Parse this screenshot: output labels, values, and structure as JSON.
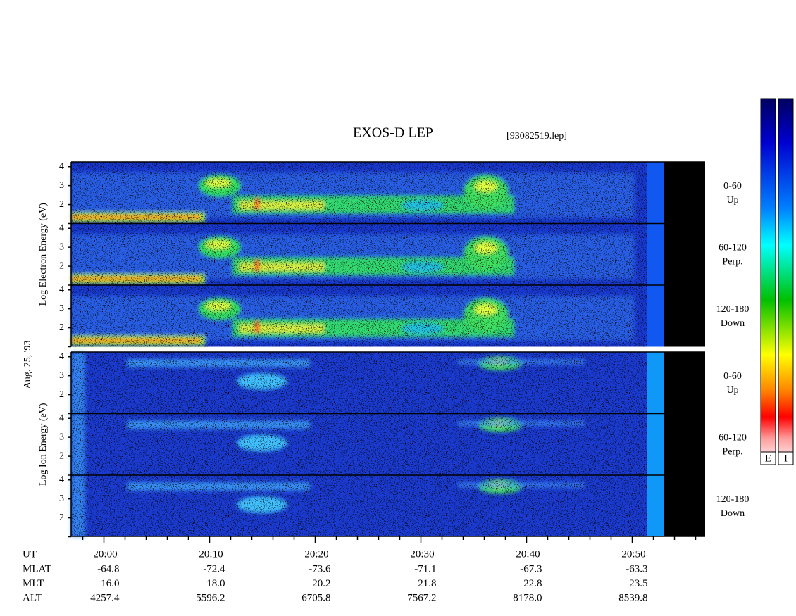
{
  "chart_data": {
    "type": "spectrogram",
    "title": "EXOS-D LEP",
    "file": "[93082519.lep]",
    "date": "Aug. 25, '93",
    "groups": [
      {
        "ylabel": "Log  Electron  Energy  (eV)",
        "panels": [
          {
            "angle": "0-60",
            "direction": "Up"
          },
          {
            "angle": "60-120",
            "direction": "Perp."
          },
          {
            "angle": "120-180",
            "direction": "Down"
          }
        ]
      },
      {
        "ylabel": "Log  Ion  Energy  (eV)",
        "panels": [
          {
            "angle": "0-60",
            "direction": "Up"
          },
          {
            "angle": "60-120",
            "direction": "Perp."
          },
          {
            "angle": "120-180",
            "direction": "Down"
          }
        ]
      }
    ],
    "ylim": [
      1,
      4.25
    ],
    "yticks": [
      2,
      3,
      4
    ],
    "xlabel": "UT",
    "xlim": [
      1196.9,
      1256.9
    ],
    "xticks": [
      {
        "value": 1200,
        "label": "20:00"
      },
      {
        "value": 1210,
        "label": "20:10"
      },
      {
        "value": 1220,
        "label": "20:20"
      },
      {
        "value": 1230,
        "label": "20:30"
      },
      {
        "value": 1240,
        "label": "20:40"
      },
      {
        "value": 1250,
        "label": "20:50"
      }
    ],
    "xminorticks": [
      1198,
      1202,
      1204,
      1206,
      1208,
      1212,
      1214,
      1216,
      1218,
      1222,
      1224,
      1226,
      1228,
      1232,
      1234,
      1236,
      1238,
      1242,
      1244,
      1246,
      1248,
      1252,
      1254,
      1256
    ],
    "orbit": [
      {
        "label": "MLAT",
        "values": [
          "-64.8",
          "-72.4",
          "-73.6",
          "-71.1",
          "-67.3",
          "-63.3"
        ]
      },
      {
        "label": "MLT",
        "values": [
          "16.0",
          "18.0",
          "20.2",
          "21.8",
          "22.8",
          "23.5"
        ]
      },
      {
        "label": "ALT",
        "values": [
          "4257.4",
          "5596.2",
          "6705.8",
          "7567.2",
          "8178.0",
          "8539.8"
        ]
      }
    ],
    "colorbars": [
      "E",
      "I"
    ]
  }
}
